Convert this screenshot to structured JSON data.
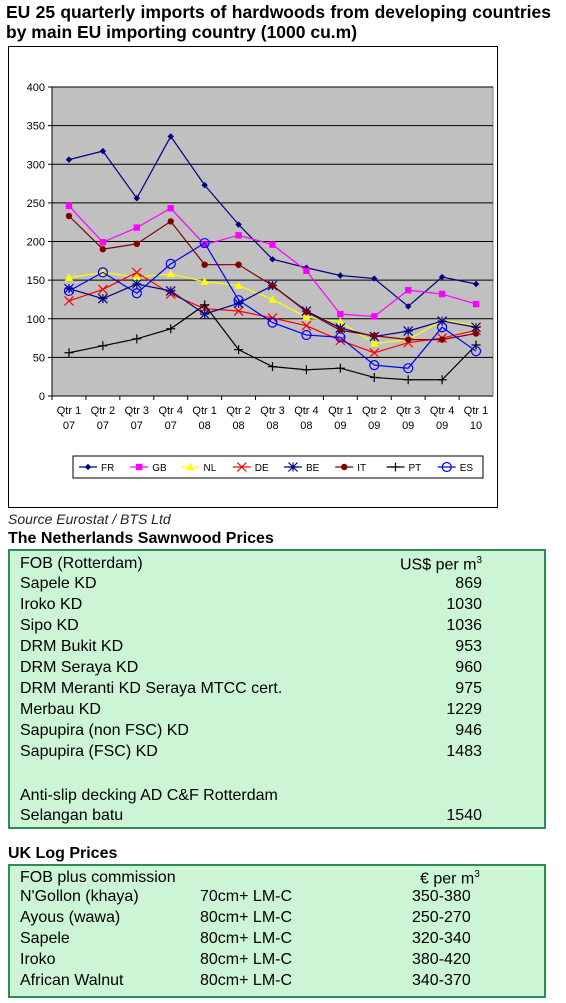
{
  "title": "EU 25 quarterly imports of hardwoods from developing countries by main EU importing country (1000 cu.m)",
  "source": "Source Eurostat / BTS Ltd",
  "chart_data": {
    "type": "line",
    "categories": [
      [
        "Qtr 1",
        "07"
      ],
      [
        "Qtr 2",
        "07"
      ],
      [
        "Qtr 3",
        "07"
      ],
      [
        "Qtr 4",
        "07"
      ],
      [
        "Qtr 1",
        "08"
      ],
      [
        "Qtr 2",
        "08"
      ],
      [
        "Qtr 3",
        "08"
      ],
      [
        "Qtr 4",
        "08"
      ],
      [
        "Qtr 1",
        "09"
      ],
      [
        "Qtr 2",
        "09"
      ],
      [
        "Qtr 3",
        "09"
      ],
      [
        "Qtr 4",
        "09"
      ],
      [
        "Qtr 1",
        "10"
      ]
    ],
    "ylim": [
      0,
      400
    ],
    "yticks": [
      0,
      50,
      100,
      150,
      200,
      250,
      300,
      350,
      400
    ],
    "grid": true,
    "plot_background": "#c0c0c0",
    "legend_position": "bottom",
    "series": [
      {
        "name": "FR",
        "color": "#000080",
        "marker": "diamond",
        "values": [
          306,
          317,
          256,
          336,
          273,
          222,
          177,
          166,
          156,
          152,
          116,
          154,
          145
        ]
      },
      {
        "name": "GB",
        "color": "#ff00ff",
        "marker": "square",
        "values": [
          246,
          199,
          218,
          243,
          196,
          208,
          196,
          162,
          106,
          103,
          137,
          132,
          119
        ]
      },
      {
        "name": "NL",
        "color": "#ffff00",
        "marker": "triangle",
        "values": [
          153,
          160,
          154,
          158,
          148,
          143,
          125,
          102,
          96,
          68,
          73,
          98,
          91
        ]
      },
      {
        "name": "DE",
        "color": "#ff0000",
        "marker": "x",
        "values": [
          123,
          138,
          160,
          132,
          113,
          110,
          101,
          91,
          72,
          56,
          69,
          75,
          85
        ]
      },
      {
        "name": "BE",
        "color": "#000080",
        "marker": "asterisk",
        "values": [
          139,
          126,
          145,
          136,
          106,
          120,
          143,
          110,
          88,
          77,
          84,
          97,
          89
        ]
      },
      {
        "name": "IT",
        "color": "#800000",
        "marker": "circle",
        "values": [
          233,
          190,
          197,
          226,
          170,
          170,
          143,
          109,
          85,
          78,
          73,
          73,
          81
        ]
      },
      {
        "name": "PT",
        "color": "#000000",
        "marker": "plus",
        "values": [
          56,
          65,
          74,
          87,
          118,
          60,
          38,
          34,
          36,
          24,
          21,
          21,
          66
        ]
      },
      {
        "name": "ES",
        "color": "#0000ff",
        "marker": "ring",
        "values": [
          136,
          160,
          133,
          171,
          198,
          124,
          95,
          79,
          76,
          40,
          36,
          89,
          58
        ]
      }
    ]
  },
  "nl": {
    "title": "The Netherlands Sawnwood Prices",
    "header": {
      "label": "FOB (Rotterdam)",
      "unit": "US$ per m",
      "unit_sup": "3"
    },
    "rows": [
      {
        "name": "Sapele KD",
        "price": "869"
      },
      {
        "name": "Iroko KD",
        "price": "1030"
      },
      {
        "name": "Sipo KD",
        "price": "1036"
      },
      {
        "name": "DRM Bukit KD",
        "price": "953"
      },
      {
        "name": "DRM Seraya KD",
        "price": "960"
      },
      {
        "name": "DRM  Meranti KD Seraya MTCC cert.",
        "price": "975"
      },
      {
        "name": "Merbau KD",
        "price": "1229"
      },
      {
        "name": "Sapupira (non FSC) KD",
        "price": "946"
      },
      {
        "name": "Sapupira  (FSC) KD",
        "price": "1483"
      }
    ],
    "decking_label": "Anti-slip decking AD C&F Rotterdam",
    "decking_row": {
      "name": "Selangan batu",
      "price": "1540"
    }
  },
  "uk": {
    "title": "UK Log Prices",
    "header": {
      "label": "FOB plus commission",
      "unit": "€ per m",
      "unit_sup": "3"
    },
    "rows": [
      {
        "name": "N'Gollon (khaya)",
        "spec": "70cm+ LM-C",
        "price": "350-380"
      },
      {
        "name": "Ayous (wawa)",
        "spec": "80cm+ LM-C",
        "price": "250-270"
      },
      {
        "name": "Sapele",
        "spec": "80cm+ LM-C",
        "price": "320-340"
      },
      {
        "name": "Iroko",
        "spec": "80cm+ LM-C",
        "price": "380-420"
      },
      {
        "name": "African Walnut",
        "spec": "80cm+ LM-C",
        "price": "340-370"
      }
    ]
  }
}
